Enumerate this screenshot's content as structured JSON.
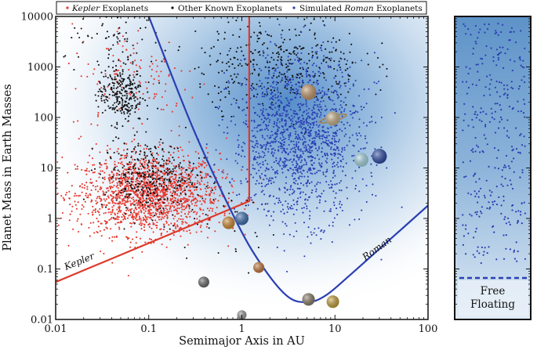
{
  "chart_data": {
    "type": "scatter",
    "xlabel": "Semimajor Axis in AU",
    "ylabel": "Planet Mass in Earth Masses",
    "x_scale": "log",
    "y_scale": "log",
    "xlim": [
      0.01,
      100
    ],
    "ylim": [
      0.01,
      10000
    ],
    "x_ticks": [
      {
        "value": 0.01,
        "label": "0.01"
      },
      {
        "value": 0.1,
        "label": "0.1"
      },
      {
        "value": 1,
        "label": "1"
      },
      {
        "value": 10,
        "label": "10"
      },
      {
        "value": 100,
        "label": "100"
      }
    ],
    "y_ticks": [
      {
        "value": 0.01,
        "label": "0.01"
      },
      {
        "value": 0.1,
        "label": "0.1"
      },
      {
        "value": 1,
        "label": "1"
      },
      {
        "value": 10,
        "label": "10"
      },
      {
        "value": 100,
        "label": "100"
      },
      {
        "value": 1000,
        "label": "1000"
      },
      {
        "value": 10000,
        "label": "10000"
      }
    ],
    "legend": {
      "placement": "top",
      "entries": [
        {
          "label_italic": "Kepler",
          "label_rest": " Exoplanets",
          "color": "#e8372c"
        },
        {
          "label_italic": "",
          "label_rest": "Other Known Exoplanets",
          "color": "#111111"
        },
        {
          "label_italic": "",
          "label_rest": "Simulated ",
          "label_italic_after": "Roman",
          "label_rest_after": " Exoplanets",
          "color": "#2a3fb3"
        }
      ]
    },
    "series": [
      {
        "color": "#e8372c",
        "clusters": [
          {
            "x_center": 0.1,
            "x_spread_dex": 0.38,
            "y_center": 3,
            "y_spread_dex": 0.4,
            "count": 1700
          },
          {
            "x_center": 0.07,
            "x_spread_dex": 0.35,
            "y_center": 600,
            "y_spread_dex": 0.55,
            "count": 130
          }
        ]
      },
      {
        "color": "#111111",
        "clusters": [
          {
            "x_center": 0.1,
            "x_spread_dex": 0.25,
            "y_center": 7,
            "y_spread_dex": 0.35,
            "count": 330
          },
          {
            "x_center": 0.05,
            "x_spread_dex": 0.12,
            "y_center": 300,
            "y_spread_dex": 0.3,
            "count": 280
          },
          {
            "x_center": 2.5,
            "x_spread_dex": 0.45,
            "y_center": 1200,
            "y_spread_dex": 0.45,
            "count": 360
          },
          {
            "x_center": 0.05,
            "x_spread_dex": 0.3,
            "y_center": 3000,
            "y_spread_dex": 0.3,
            "count": 60
          },
          {
            "x_center": 0.5,
            "x_spread_dex": 0.4,
            "y_center": 0.8,
            "y_spread_dex": 0.5,
            "count": 40
          }
        ]
      },
      {
        "color": "#2a3fb3",
        "clusters": [
          {
            "x_center": 4,
            "x_spread_dex": 0.35,
            "y_center": 40,
            "y_spread_dex": 0.8,
            "count": 1500
          }
        ]
      }
    ],
    "sensitivity_curves": [
      {
        "name": "Kepler",
        "color": "#e0392b",
        "points": [
          [
            0.01,
            0.055
          ],
          [
            1.2,
            2.2
          ],
          [
            1.2,
            10000
          ]
        ]
      },
      {
        "name": "Roman",
        "color": "#2a3fb3",
        "points": [
          [
            0.1,
            10000
          ],
          [
            0.3,
            60
          ],
          [
            0.8,
            1.2
          ],
          [
            1.5,
            0.15
          ],
          [
            3,
            0.03
          ],
          [
            5,
            0.022
          ],
          [
            8,
            0.03
          ],
          [
            15,
            0.08
          ],
          [
            40,
            0.4
          ],
          [
            100,
            1.8
          ]
        ]
      }
    ],
    "solar_system_planets": [
      {
        "name": "Mercury",
        "a": 0.39,
        "m": 0.055,
        "color": "#6b6b6b"
      },
      {
        "name": "Venus",
        "a": 0.72,
        "m": 0.82,
        "color": "#d48a2e"
      },
      {
        "name": "Earth",
        "a": 1.0,
        "m": 1.0,
        "color": "#3d6fb2"
      },
      {
        "name": "Mars",
        "a": 1.52,
        "m": 0.107,
        "color": "#c87a3a"
      },
      {
        "name": "Jupiter",
        "a": 5.2,
        "m": 318,
        "color": "#c79a6a"
      },
      {
        "name": "Saturn",
        "a": 9.5,
        "m": 95,
        "color": "#c8b38a"
      },
      {
        "name": "Uranus",
        "a": 19.2,
        "m": 14.5,
        "color": "#a9dbe6"
      },
      {
        "name": "Neptune",
        "a": 30,
        "m": 17,
        "color": "#2b4aa8"
      },
      {
        "name": "Moon",
        "a": 1.0,
        "m": 0.0123,
        "color": "#9a9a9a"
      },
      {
        "name": "Ganymede",
        "a": 5.2,
        "m": 0.025,
        "color": "#8a7f6a"
      },
      {
        "name": "Titan",
        "a": 9.5,
        "m": 0.0225,
        "color": "#c9a23c"
      }
    ],
    "free_floating": {
      "label_line1": "Free",
      "label_line2": "Floating",
      "points_count": 320,
      "color": "#2a3fb3"
    }
  }
}
